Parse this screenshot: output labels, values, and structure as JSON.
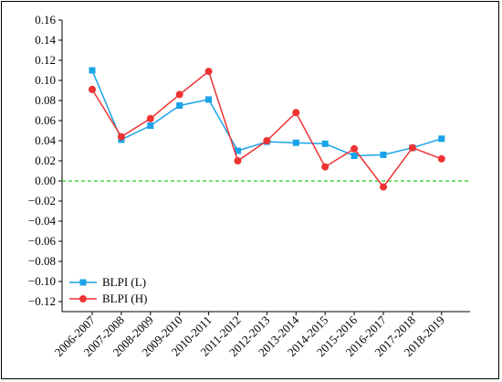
{
  "chart_data": {
    "type": "line",
    "title": "",
    "xlabel": "",
    "ylabel": "",
    "categories": [
      "2006-2007",
      "2007-2008",
      "2008-2009",
      "2009-2010",
      "2010-2011",
      "2011-2012",
      "2012-2013",
      "2013-2014",
      "2014-2015",
      "2015-2016",
      "2016-2017",
      "2017-2018",
      "2018-2019"
    ],
    "ylim": [
      -0.13,
      0.16
    ],
    "yticks": [
      "0.16",
      "0.14",
      "0.12",
      "0.10",
      "0.08",
      "0.06",
      "0.04",
      "0.02",
      "0.00",
      "−0.02",
      "−0.04",
      "−0.06",
      "−0.08",
      "−0.10",
      "−0.12"
    ],
    "ytick_values": [
      0.16,
      0.14,
      0.12,
      0.1,
      0.08,
      0.06,
      0.04,
      0.02,
      0.0,
      -0.02,
      -0.04,
      -0.06,
      -0.08,
      -0.1,
      -0.12
    ],
    "reference_line": {
      "y": 0.0,
      "color": "#22cc22",
      "style": "dashed"
    },
    "legend_position": "bottom-left",
    "grid": false,
    "series": [
      {
        "name": "BLPI (L)",
        "color": "#1aa3e8",
        "marker": "square",
        "values": [
          0.11,
          0.041,
          0.055,
          0.075,
          0.081,
          0.03,
          0.039,
          0.038,
          0.037,
          0.025,
          0.026,
          0.033,
          0.042
        ]
      },
      {
        "name": "BLPI (H)",
        "color": "#ee3333",
        "marker": "circle",
        "values": [
          0.091,
          0.044,
          0.062,
          0.086,
          0.109,
          0.02,
          0.04,
          0.068,
          0.014,
          0.032,
          -0.006,
          0.033,
          0.022
        ]
      }
    ]
  }
}
